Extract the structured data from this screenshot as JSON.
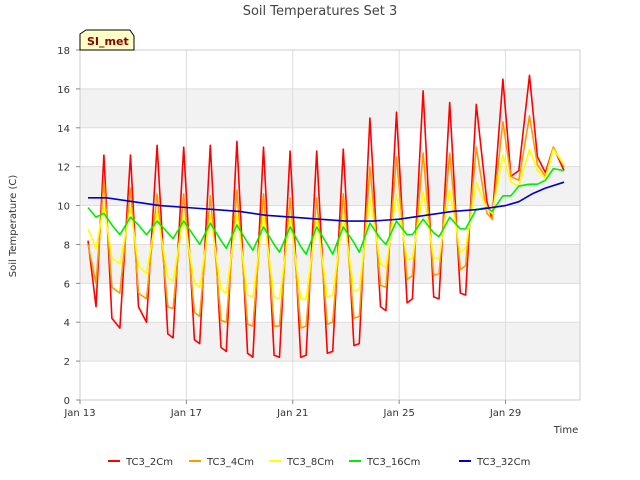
{
  "chart_data": {
    "type": "line",
    "title": "Soil Temperatures Set 3",
    "xlabel": "Time",
    "ylabel": "Soil Temperature (C)",
    "badge": "SI_met",
    "x_tick_labels": [
      "Jan 13",
      "Jan 17",
      "Jan 21",
      "Jan 25",
      "Jan 29"
    ],
    "x_tick_days": [
      13,
      17,
      21,
      25,
      29
    ],
    "xlim": [
      13,
      31.8
    ],
    "ylim": [
      0,
      18
    ],
    "y_ticks": [
      0,
      2,
      4,
      6,
      8,
      10,
      12,
      14,
      16,
      18
    ],
    "grid": true,
    "legend_position": "bottom",
    "series": [
      {
        "name": "TC3_2Cm",
        "color": "#ff0000",
        "x": [
          13.3,
          13.6,
          13.9,
          14.2,
          14.5,
          14.9,
          15.2,
          15.5,
          15.9,
          16.3,
          16.5,
          16.9,
          17.3,
          17.5,
          17.9,
          18.3,
          18.5,
          18.9,
          19.3,
          19.5,
          19.9,
          20.3,
          20.5,
          20.9,
          21.3,
          21.5,
          21.9,
          22.3,
          22.5,
          22.9,
          23.3,
          23.5,
          23.9,
          24.3,
          24.5,
          24.9,
          25.3,
          25.5,
          25.9,
          26.3,
          26.5,
          26.9,
          27.3,
          27.5,
          27.9,
          28.3,
          28.5,
          28.9,
          29.2,
          29.5,
          29.9,
          30.2,
          30.5,
          30.8,
          31.2
        ],
        "y": [
          8.2,
          4.8,
          12.6,
          4.2,
          3.7,
          12.6,
          4.8,
          4.0,
          13.1,
          3.4,
          3.2,
          13.0,
          3.1,
          2.9,
          13.1,
          2.7,
          2.5,
          13.3,
          2.4,
          2.2,
          13.0,
          2.3,
          2.2,
          12.8,
          2.2,
          2.3,
          12.8,
          2.4,
          2.5,
          12.9,
          2.8,
          2.9,
          14.5,
          4.8,
          4.6,
          14.8,
          5.0,
          5.2,
          15.9,
          5.3,
          5.2,
          15.3,
          5.5,
          5.4,
          15.2,
          10.2,
          9.3,
          16.5,
          11.5,
          11.8,
          16.7,
          12.5,
          11.7,
          13.0,
          11.8
        ]
      },
      {
        "name": "TC3_4Cm",
        "color": "#ff9900",
        "x": [
          13.3,
          13.6,
          13.9,
          14.2,
          14.5,
          14.9,
          15.2,
          15.5,
          15.9,
          16.3,
          16.5,
          16.9,
          17.3,
          17.5,
          17.9,
          18.3,
          18.5,
          18.9,
          19.3,
          19.5,
          19.9,
          20.3,
          20.5,
          20.9,
          21.3,
          21.5,
          21.9,
          22.3,
          22.5,
          22.9,
          23.3,
          23.5,
          23.9,
          24.3,
          24.5,
          24.9,
          25.3,
          25.5,
          25.9,
          26.3,
          26.5,
          26.9,
          27.3,
          27.5,
          27.9,
          28.3,
          28.5,
          28.9,
          29.2,
          29.5,
          29.9,
          30.2,
          30.5,
          30.8,
          31.2
        ],
        "y": [
          8.0,
          6.0,
          11.3,
          5.8,
          5.5,
          10.9,
          5.5,
          5.2,
          10.6,
          4.8,
          4.7,
          10.6,
          4.5,
          4.3,
          10.5,
          4.1,
          4.0,
          10.8,
          3.9,
          3.8,
          10.6,
          3.8,
          3.8,
          10.4,
          3.7,
          3.8,
          10.4,
          3.9,
          4.0,
          10.6,
          4.2,
          4.3,
          12.0,
          5.9,
          5.8,
          12.5,
          6.2,
          6.4,
          12.7,
          6.4,
          6.5,
          12.7,
          6.7,
          6.9,
          13.0,
          9.6,
          9.3,
          14.3,
          11.5,
          11.3,
          14.6,
          12.1,
          11.5,
          13.0,
          12.0
        ]
      },
      {
        "name": "TC3_8Cm",
        "color": "#ffff00",
        "x": [
          13.3,
          13.6,
          13.9,
          14.2,
          14.5,
          14.9,
          15.2,
          15.5,
          15.9,
          16.3,
          16.5,
          16.9,
          17.3,
          17.5,
          17.9,
          18.3,
          18.5,
          18.9,
          19.3,
          19.5,
          19.9,
          20.3,
          20.5,
          20.9,
          21.3,
          21.5,
          21.9,
          22.3,
          22.5,
          22.9,
          23.3,
          23.5,
          23.9,
          24.3,
          24.5,
          24.9,
          25.3,
          25.5,
          25.9,
          26.3,
          26.5,
          26.9,
          27.3,
          27.5,
          27.9,
          28.3,
          28.5,
          28.9,
          29.2,
          29.5,
          29.9,
          30.2,
          30.5,
          30.8,
          31.2
        ],
        "y": [
          8.8,
          7.8,
          10.0,
          7.3,
          7.0,
          9.9,
          6.9,
          6.5,
          9.7,
          6.3,
          6.1,
          9.5,
          6.0,
          5.8,
          9.5,
          5.7,
          5.5,
          9.6,
          5.4,
          5.3,
          9.6,
          5.3,
          5.2,
          9.4,
          5.2,
          5.2,
          9.4,
          5.3,
          5.4,
          9.6,
          5.6,
          5.7,
          10.4,
          7.0,
          6.8,
          10.6,
          7.2,
          7.3,
          10.7,
          7.3,
          7.3,
          10.8,
          7.6,
          7.8,
          11.2,
          9.8,
          9.6,
          12.6,
          11.2,
          11.0,
          12.9,
          11.8,
          11.4,
          12.9,
          12.1
        ]
      },
      {
        "name": "TC3_16Cm",
        "color": "#00ee00",
        "x": [
          13.3,
          13.6,
          13.9,
          14.2,
          14.5,
          14.9,
          15.2,
          15.5,
          15.9,
          16.3,
          16.5,
          16.9,
          17.3,
          17.5,
          17.9,
          18.3,
          18.5,
          18.9,
          19.3,
          19.5,
          19.9,
          20.3,
          20.5,
          20.9,
          21.3,
          21.5,
          21.9,
          22.3,
          22.5,
          22.9,
          23.3,
          23.5,
          23.9,
          24.3,
          24.5,
          24.9,
          25.3,
          25.5,
          25.9,
          26.3,
          26.5,
          26.9,
          27.3,
          27.5,
          27.9,
          28.3,
          28.5,
          28.9,
          29.2,
          29.5,
          29.9,
          30.2,
          30.5,
          30.8,
          31.2
        ],
        "y": [
          9.9,
          9.4,
          9.6,
          9.0,
          8.5,
          9.4,
          9.0,
          8.5,
          9.2,
          8.6,
          8.3,
          9.2,
          8.4,
          8.0,
          9.1,
          8.2,
          7.8,
          9.0,
          8.1,
          7.7,
          8.9,
          8.0,
          7.6,
          8.9,
          7.9,
          7.5,
          8.9,
          8.0,
          7.5,
          8.9,
          8.1,
          7.6,
          9.1,
          8.3,
          8.0,
          9.2,
          8.5,
          8.5,
          9.3,
          8.6,
          8.4,
          9.4,
          8.8,
          8.8,
          9.8,
          9.9,
          9.7,
          10.5,
          10.5,
          11.0,
          11.1,
          11.1,
          11.3,
          11.9,
          11.8
        ]
      },
      {
        "name": "TC3_32Cm",
        "color": "#0000cc",
        "x": [
          13.3,
          14.0,
          15.0,
          16.0,
          17.0,
          18.0,
          19.0,
          20.0,
          21.0,
          22.0,
          23.0,
          24.0,
          25.0,
          26.0,
          27.0,
          28.0,
          29.0,
          29.5,
          30.0,
          30.5,
          31.2
        ],
        "y": [
          10.4,
          10.4,
          10.2,
          10.0,
          9.9,
          9.8,
          9.7,
          9.5,
          9.4,
          9.3,
          9.2,
          9.2,
          9.3,
          9.5,
          9.7,
          9.8,
          10.0,
          10.2,
          10.6,
          10.9,
          11.2
        ]
      }
    ]
  }
}
